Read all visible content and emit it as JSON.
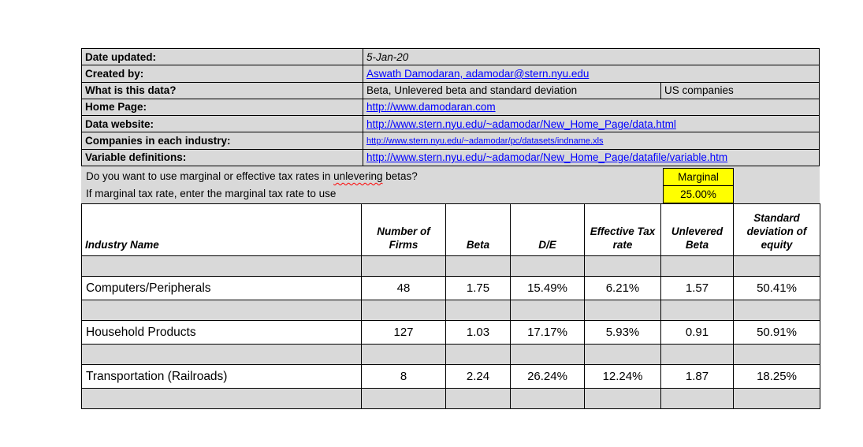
{
  "meta": {
    "rows": [
      {
        "label": "Date updated:",
        "value": "5-Jan-20"
      },
      {
        "label": "Created by:",
        "value": "Aswath Damodaran, adamodar@stern.nyu.edu"
      },
      {
        "label": "What is this data?",
        "value": "Beta, Unlevered beta and standard deviation",
        "value2": "US companies"
      },
      {
        "label": "Home Page:",
        "value": "http://www.damodaran.com"
      },
      {
        "label": "Data website:",
        "value": "http://www.stern.nyu.edu/~adamodar/New_Home_Page/data.html"
      },
      {
        "label": "Companies in each industry:",
        "value": "http://www.stern.nyu.edu/~adamodar/pc/datasets/indname.xls"
      },
      {
        "label": "Variable definitions:",
        "value": "http://www.stern.nyu.edu/~adamodar/New_Home_Page/datafile/variable.htm"
      }
    ]
  },
  "tax_question": {
    "q1_prefix": "Do you want to use marginal or effective tax rates in ",
    "q1_misspelled_word": "unlevering",
    "q1_suffix": " betas?",
    "q1_answer": "Marginal",
    "q2_text": "If marginal tax rate, enter the marginal tax rate to use",
    "q2_answer": "25.00%"
  },
  "table": {
    "headers": [
      "Industry Name",
      "Number of Firms",
      "Beta",
      "D/E",
      "Effective Tax rate",
      "Unlevered Beta",
      "Standard deviation of equity"
    ],
    "rows": [
      {
        "cells": [
          "Computers/Peripherals",
          "48",
          "1.75",
          "15.49%",
          "6.21%",
          "1.57",
          "50.41%"
        ]
      },
      {
        "cells": [
          "Household Products",
          "127",
          "1.03",
          "17.17%",
          "5.93%",
          "0.91",
          "50.91%"
        ]
      },
      {
        "cells": [
          "Transportation (Railroads)",
          "8",
          "2.24",
          "26.24%",
          "12.24%",
          "1.87",
          "18.25%"
        ]
      }
    ]
  },
  "colors": {
    "cell_gray": "#d9d9d9",
    "highlight_yellow": "#ffff00",
    "link_blue": "#0000ff",
    "border_black": "#000000",
    "squiggle_red": "#ff0000"
  }
}
